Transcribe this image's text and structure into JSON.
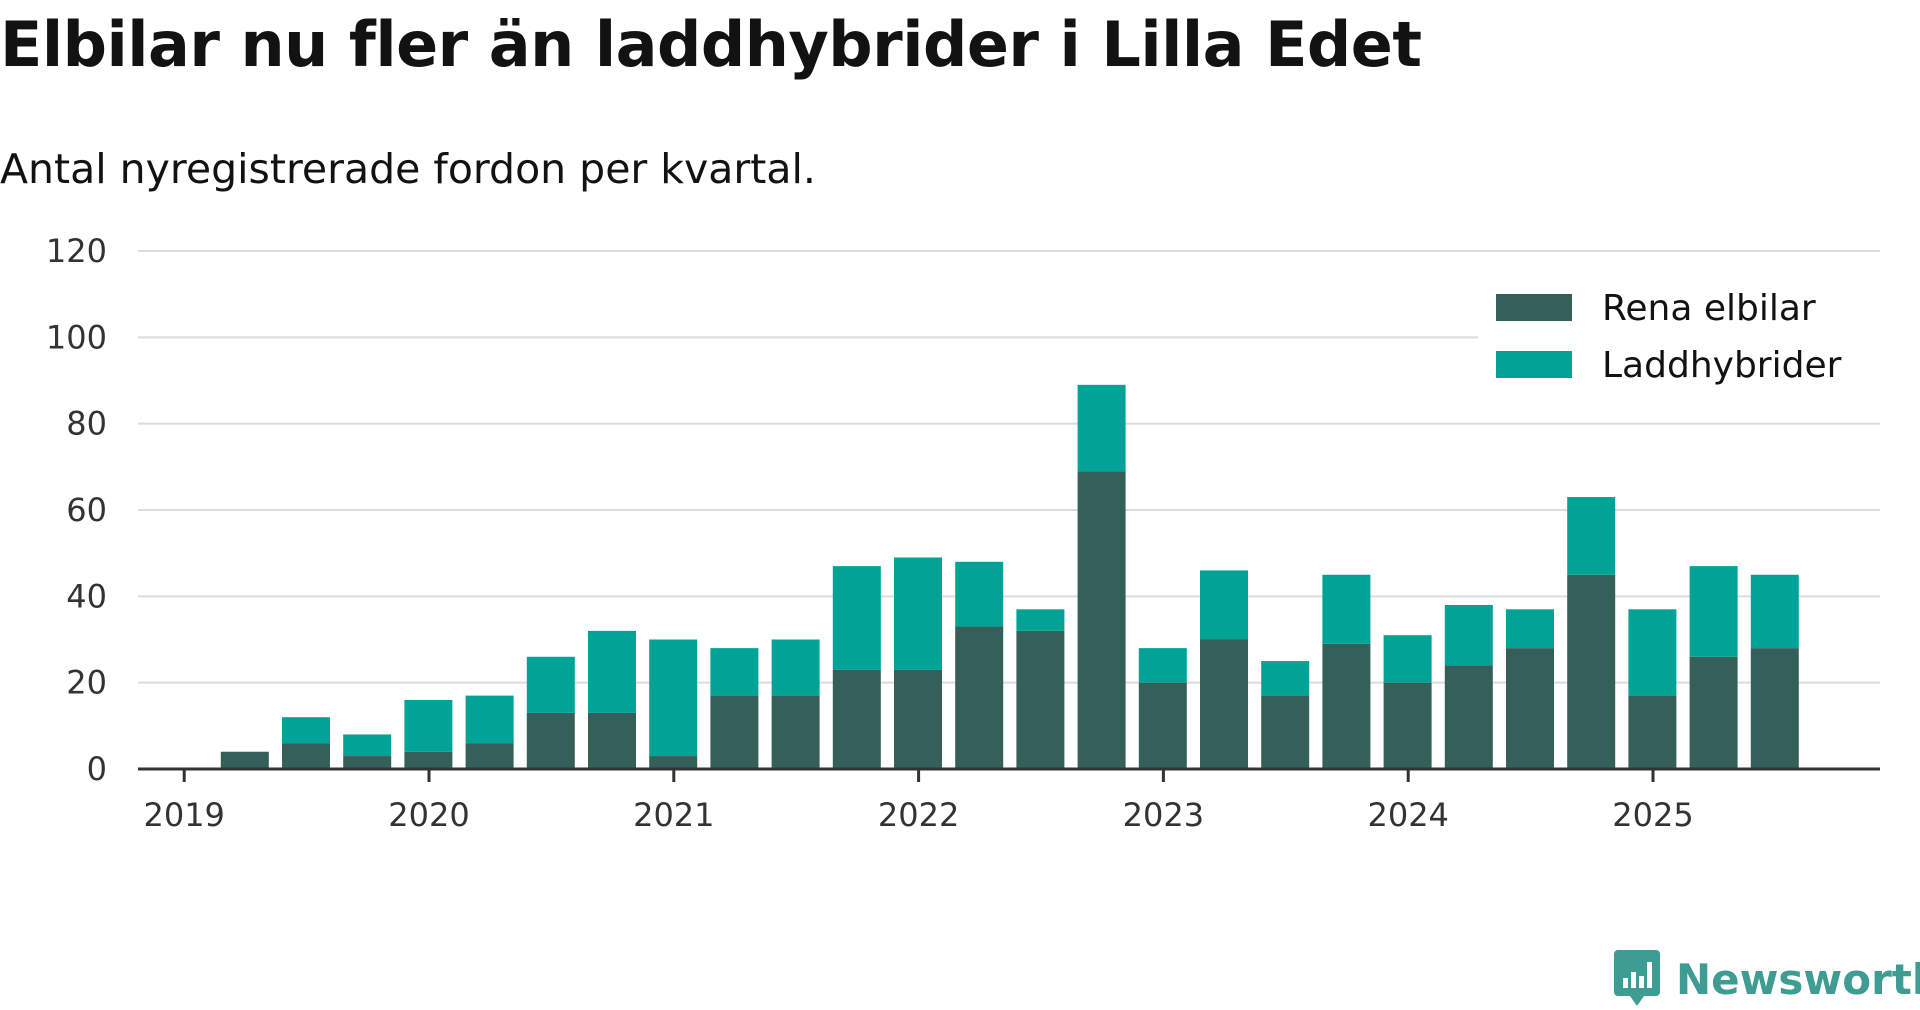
{
  "header": {
    "title": "Elbilar nu fler än laddhybrider i Lilla Edet",
    "subtitle": "Antal nyregistrerade fordon per kvartal."
  },
  "brand": {
    "name": "Newsworthy",
    "color": "#3e9c92"
  },
  "colors": {
    "elbilar": "#35605a",
    "laddhybrider": "#00a396",
    "grid": "#dcdcdc",
    "axis": "#333333"
  },
  "chart_data": {
    "type": "bar",
    "stacked": true,
    "title": "Elbilar nu fler än laddhybrider i Lilla Edet",
    "subtitle": "Antal nyregistrerade fordon per kvartal.",
    "xlabel": "",
    "ylabel": "",
    "ylim": [
      0,
      120
    ],
    "yticks": [
      0,
      20,
      40,
      60,
      80,
      100,
      120
    ],
    "xtick_labels": [
      "2019",
      "2020",
      "2021",
      "2022",
      "2023",
      "2024",
      "2025"
    ],
    "legend_position": "top-right",
    "categories": [
      "2019 Q1",
      "2019 Q2",
      "2019 Q3",
      "2019 Q4",
      "2020 Q1",
      "2020 Q2",
      "2020 Q3",
      "2020 Q4",
      "2021 Q1",
      "2021 Q2",
      "2021 Q3",
      "2021 Q4",
      "2022 Q1",
      "2022 Q2",
      "2022 Q3",
      "2022 Q4",
      "2023 Q1",
      "2023 Q2",
      "2023 Q3",
      "2023 Q4",
      "2024 Q1",
      "2024 Q2",
      "2024 Q3",
      "2024 Q4",
      "2025 Q1",
      "2025 Q2",
      "2025 Q3"
    ],
    "series": [
      {
        "name": "Rena elbilar",
        "values": [
          0,
          4,
          6,
          3,
          4,
          6,
          13,
          13,
          3,
          17,
          17,
          23,
          23,
          33,
          32,
          69,
          20,
          30,
          17,
          29,
          20,
          24,
          28,
          45,
          17,
          26,
          28
        ]
      },
      {
        "name": "Laddhybrider",
        "values": [
          0,
          0,
          6,
          5,
          12,
          11,
          13,
          19,
          27,
          11,
          13,
          24,
          26,
          15,
          5,
          20,
          8,
          16,
          8,
          16,
          11,
          14,
          9,
          18,
          20,
          21,
          17
        ]
      }
    ]
  }
}
